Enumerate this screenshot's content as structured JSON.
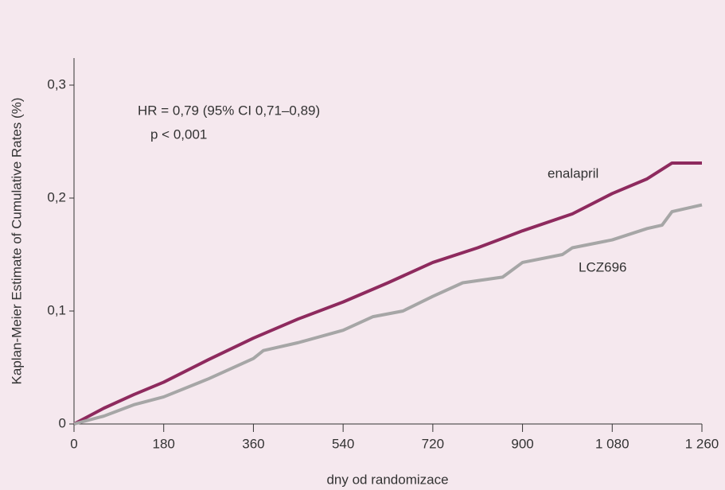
{
  "chart_data": {
    "type": "line",
    "x_label": "dny od randomizace",
    "y_label": "Kaplan-Meier Estimate of Cumulative Rates (%)",
    "annotations": [
      "HR = 0,79 (95% CI 0,71–0,89)",
      "p < 0,001"
    ],
    "xlim": [
      0,
      1260
    ],
    "xticks": [
      0,
      180,
      360,
      540,
      720,
      900,
      {
        "value": 1080,
        "label": "1 080"
      },
      {
        "value": 1260,
        "label": "1 260"
      }
    ],
    "ylim": [
      0,
      0.3
    ],
    "yticks": [
      0,
      {
        "value": 0.1,
        "label": "0,1"
      },
      {
        "value": 0.2,
        "label": "0,2"
      },
      {
        "value": 0.3,
        "label": "0,3"
      }
    ],
    "series": [
      {
        "name": "enalapril",
        "color": "#8e2a5e",
        "x": [
          0,
          60,
          120,
          180,
          270,
          360,
          450,
          540,
          630,
          720,
          810,
          900,
          1000,
          1080,
          1150,
          1200,
          1260
        ],
        "values": [
          0,
          0.014,
          0.026,
          0.037,
          0.057,
          0.076,
          0.093,
          0.108,
          0.125,
          0.143,
          0.156,
          0.171,
          0.186,
          0.204,
          0.217,
          0.231,
          0.231
        ]
      },
      {
        "name": "LCZ696",
        "color": "#a6a6a6",
        "x": [
          0,
          60,
          120,
          180,
          270,
          360,
          380,
          450,
          540,
          600,
          660,
          720,
          780,
          860,
          900,
          980,
          1000,
          1080,
          1150,
          1180,
          1200,
          1260
        ],
        "values": [
          0,
          0.007,
          0.017,
          0.024,
          0.04,
          0.058,
          0.065,
          0.072,
          0.083,
          0.095,
          0.1,
          0.113,
          0.125,
          0.13,
          0.143,
          0.15,
          0.156,
          0.163,
          0.173,
          0.176,
          0.188,
          0.194
        ]
      }
    ]
  }
}
